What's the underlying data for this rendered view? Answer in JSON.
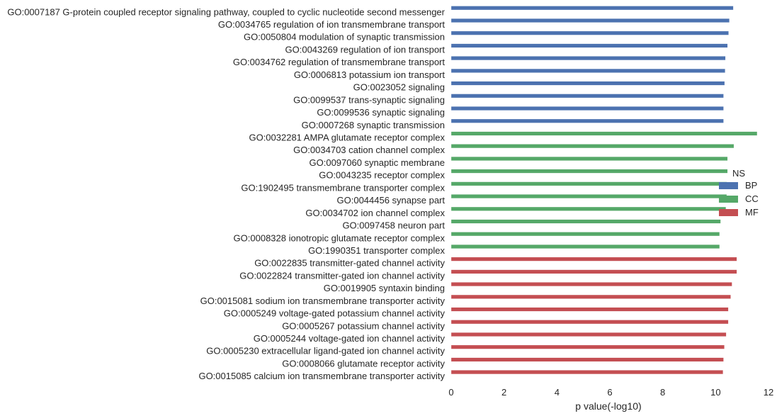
{
  "chart_data": {
    "type": "bar",
    "orientation": "horizontal",
    "title": "",
    "xlabel": "p value(-log10)",
    "ylabel": "",
    "xlim": [
      0,
      12
    ],
    "xticks": [
      0,
      2,
      4,
      6,
      8,
      10,
      12
    ],
    "grid": false,
    "legend": {
      "placement": "right",
      "title": "NS",
      "entries": [
        {
          "name": "BP",
          "color": "#4c72b0"
        },
        {
          "name": "CC",
          "color": "#55a868"
        },
        {
          "name": "MF",
          "color": "#c44e52"
        }
      ]
    },
    "bars": [
      {
        "label": "GO:0007187 G-protein coupled receptor signaling pathway, coupled to cyclic nucleotide second messenger",
        "value": 10.67,
        "group": "BP"
      },
      {
        "label": "GO:0034765 regulation of ion transmembrane transport",
        "value": 10.52,
        "group": "BP"
      },
      {
        "label": "GO:0050804 modulation of synaptic transmission",
        "value": 10.49,
        "group": "BP"
      },
      {
        "label": "GO:0043269 regulation of ion transport",
        "value": 10.45,
        "group": "BP"
      },
      {
        "label": "GO:0034762 regulation of transmembrane transport",
        "value": 10.37,
        "group": "BP"
      },
      {
        "label": "GO:0006813 potassium ion transport",
        "value": 10.36,
        "group": "BP"
      },
      {
        "label": "GO:0023052 signaling",
        "value": 10.34,
        "group": "BP"
      },
      {
        "label": "GO:0099537 trans-synaptic signaling",
        "value": 10.3,
        "group": "BP"
      },
      {
        "label": "GO:0099536 synaptic signaling",
        "value": 10.3,
        "group": "BP"
      },
      {
        "label": "GO:0007268 synaptic transmission",
        "value": 10.3,
        "group": "BP"
      },
      {
        "label": "GO:0032281 AMPA glutamate receptor complex",
        "value": 11.57,
        "group": "CC"
      },
      {
        "label": "GO:0034703 cation channel complex",
        "value": 10.69,
        "group": "CC"
      },
      {
        "label": "GO:0097060 synaptic membrane",
        "value": 10.45,
        "group": "CC"
      },
      {
        "label": "GO:0043235 receptor complex",
        "value": 10.45,
        "group": "CC"
      },
      {
        "label": "GO:1902495 transmembrane transporter complex",
        "value": 10.43,
        "group": "CC"
      },
      {
        "label": "GO:0044456 synapse part",
        "value": 10.42,
        "group": "CC"
      },
      {
        "label": "GO:0034702 ion channel complex",
        "value": 10.39,
        "group": "CC"
      },
      {
        "label": "GO:0097458 neuron part",
        "value": 10.19,
        "group": "CC"
      },
      {
        "label": "GO:0008328 ionotropic glutamate receptor complex",
        "value": 10.15,
        "group": "CC"
      },
      {
        "label": "GO:1990351 transporter complex",
        "value": 10.15,
        "group": "CC"
      },
      {
        "label": "GO:0022835 transmitter-gated channel activity",
        "value": 10.8,
        "group": "MF"
      },
      {
        "label": "GO:0022824 transmitter-gated ion channel activity",
        "value": 10.8,
        "group": "MF"
      },
      {
        "label": "GO:0019905 syntaxin binding",
        "value": 10.62,
        "group": "MF"
      },
      {
        "label": "GO:0015081 sodium ion transmembrane transporter activity",
        "value": 10.57,
        "group": "MF"
      },
      {
        "label": "GO:0005249 voltage-gated potassium channel activity",
        "value": 10.48,
        "group": "MF"
      },
      {
        "label": "GO:0005267 potassium channel activity",
        "value": 10.48,
        "group": "MF"
      },
      {
        "label": "GO:0005244 voltage-gated ion channel activity",
        "value": 10.4,
        "group": "MF"
      },
      {
        "label": "GO:0005230 extracellular ligand-gated ion channel activity",
        "value": 10.33,
        "group": "MF"
      },
      {
        "label": "GO:0008066 glutamate receptor activity",
        "value": 10.3,
        "group": "MF"
      },
      {
        "label": "GO:0015085 calcium ion transmembrane transporter activity",
        "value": 10.28,
        "group": "MF"
      }
    ]
  }
}
